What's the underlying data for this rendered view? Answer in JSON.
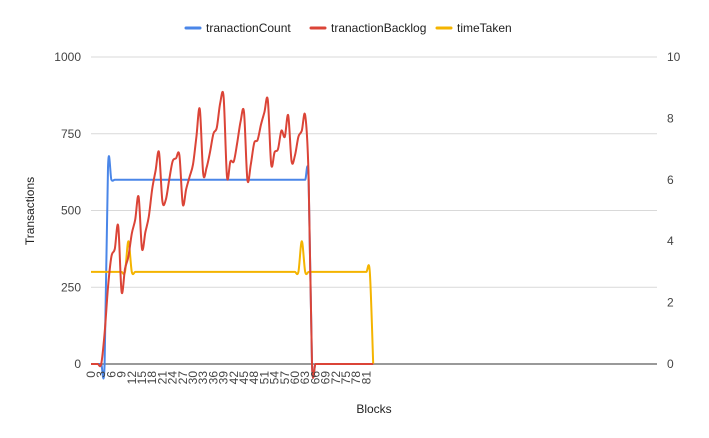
{
  "chart_data": {
    "type": "line",
    "xlabel": "Blocks",
    "ylabel": "Transactions",
    "x_ticks": [
      0,
      3,
      6,
      9,
      12,
      15,
      18,
      21,
      24,
      27,
      30,
      33,
      36,
      39,
      42,
      45,
      48,
      51,
      54,
      57,
      60,
      63,
      66,
      69,
      72,
      75,
      78,
      81
    ],
    "ylim": [
      0,
      1000
    ],
    "y_ticks": [
      0,
      250,
      500,
      750,
      1000
    ],
    "y_ticks_labels": [
      "0",
      "250",
      "500",
      "750",
      "1000"
    ],
    "y2lim": [
      0,
      10
    ],
    "y2_ticks": [
      0,
      2,
      4,
      6,
      8,
      10
    ],
    "grid": true,
    "legend_position": "top",
    "series": [
      {
        "name": "tranactionCount",
        "axis": "left",
        "color": "#4a86e8",
        "values": [
          0,
          0,
          0,
          0,
          0,
          640,
          600,
          600,
          600,
          600,
          600,
          600,
          600,
          600,
          600,
          600,
          600,
          600,
          600,
          600,
          600,
          600,
          600,
          600,
          600,
          600,
          600,
          600,
          600,
          600,
          600,
          600,
          600,
          600,
          600,
          600,
          600,
          600,
          600,
          600,
          600,
          600,
          600,
          600,
          600,
          600,
          600,
          600,
          600,
          600,
          600,
          600,
          600,
          600,
          600,
          600,
          600,
          600,
          600,
          600,
          600,
          600,
          600,
          600,
          600,
          0,
          0,
          0,
          0,
          0,
          0,
          0,
          0,
          0,
          0,
          0,
          0,
          0,
          0,
          0,
          0,
          0,
          0,
          0
        ]
      },
      {
        "name": "tranactionBacklog",
        "axis": "left",
        "color": "#db4437",
        "values": [
          0,
          0,
          0,
          0,
          100,
          250,
          350,
          375,
          450,
          235,
          310,
          350,
          425,
          470,
          545,
          375,
          430,
          480,
          570,
          630,
          690,
          530,
          535,
          600,
          660,
          670,
          680,
          520,
          570,
          610,
          650,
          740,
          830,
          620,
          640,
          690,
          750,
          770,
          850,
          870,
          610,
          660,
          660,
          720,
          790,
          820,
          600,
          650,
          720,
          730,
          780,
          820,
          860,
          650,
          690,
          700,
          760,
          740,
          810,
          660,
          680,
          740,
          760,
          810,
          610,
          0,
          0,
          0,
          0,
          0,
          0,
          0,
          0,
          0,
          0,
          0,
          0,
          0,
          0,
          0,
          0,
          0,
          0,
          0
        ]
      },
      {
        "name": "timeTaken",
        "axis": "right",
        "color": "#f4b400",
        "values": [
          3,
          3,
          3,
          3,
          3,
          3,
          3,
          3,
          3,
          3,
          3,
          4,
          3,
          3,
          3,
          3,
          3,
          3,
          3,
          3,
          3,
          3,
          3,
          3,
          3,
          3,
          3,
          3,
          3,
          3,
          3,
          3,
          3,
          3,
          3,
          3,
          3,
          3,
          3,
          3,
          3,
          3,
          3,
          3,
          3,
          3,
          3,
          3,
          3,
          3,
          3,
          3,
          3,
          3,
          3,
          3,
          3,
          3,
          3,
          3,
          3,
          3,
          4,
          3,
          3,
          3,
          3,
          3,
          3,
          3,
          3,
          3,
          3,
          3,
          3,
          3,
          3,
          3,
          3,
          3,
          3,
          3,
          3,
          0
        ]
      }
    ]
  }
}
